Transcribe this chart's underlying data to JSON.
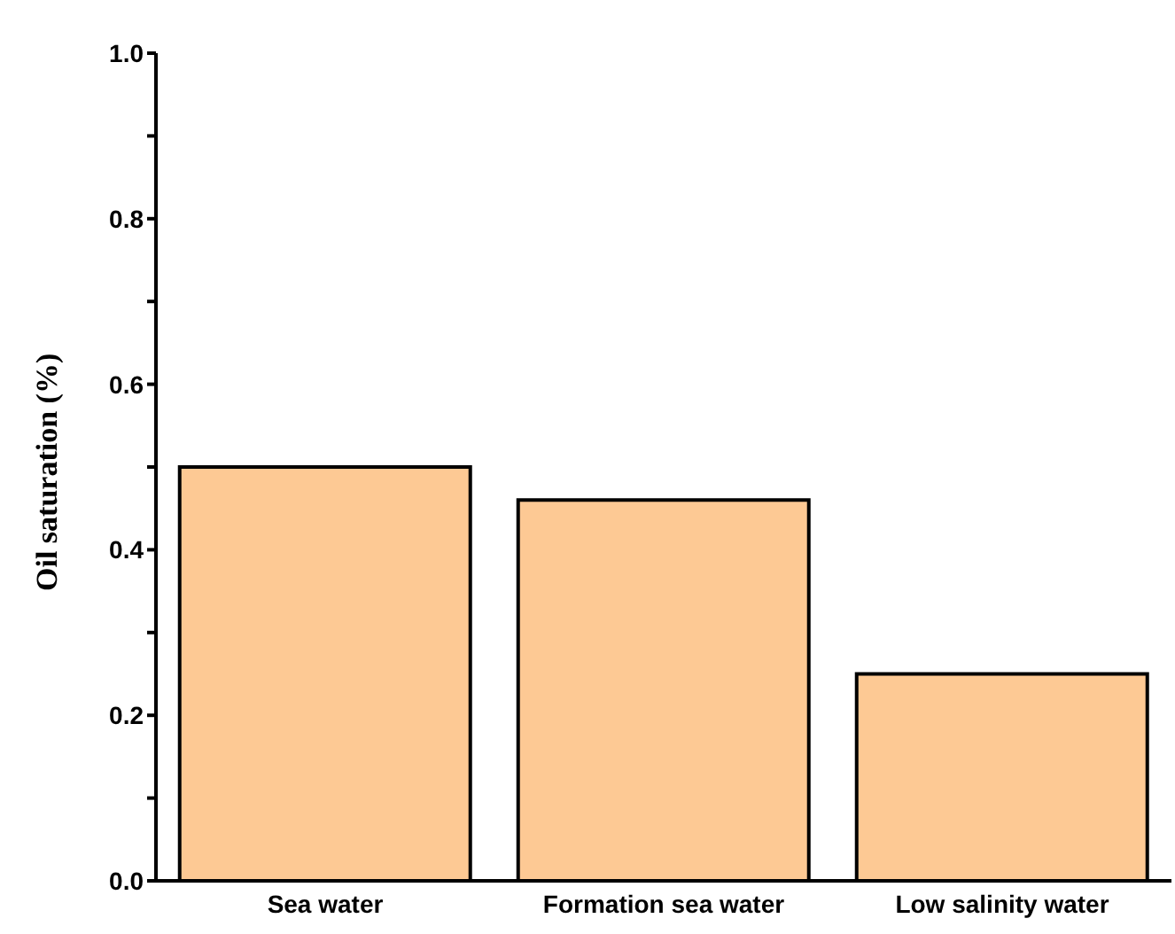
{
  "chart_data": {
    "type": "bar",
    "ylabel": "Oil saturation (%)",
    "categories": [
      "Sea water",
      "Formation sea water",
      "Low salinity water"
    ],
    "values": [
      0.5,
      0.46,
      0.25
    ],
    "color": "#fdc994",
    "ylim": [
      0,
      1
    ],
    "yticks": [
      {
        "value": 0,
        "label": "0.0"
      },
      {
        "value": 0.1,
        "label": null
      },
      0.2,
      {
        "value": 0.3,
        "label": null
      },
      0.4,
      {
        "value": 0.5,
        "label": null
      },
      0.6,
      {
        "value": 0.7,
        "label": null
      },
      0.8,
      {
        "value": 0.9,
        "label": null
      },
      {
        "value": 1,
        "label": "1.0"
      }
    ],
    "grid": false,
    "legend": false
  }
}
